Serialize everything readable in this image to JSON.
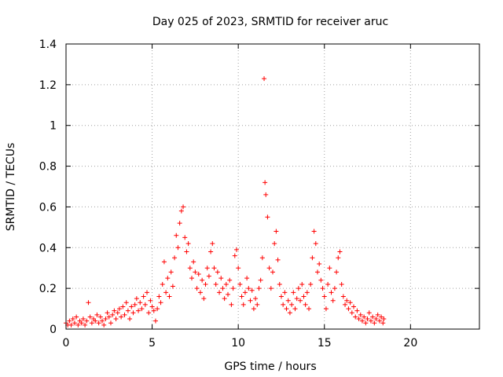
{
  "chart_data": {
    "type": "scatter",
    "title": "Day 025 of 2023, SRMTID for receiver aruc",
    "xlabel": "GPS time / hours",
    "ylabel": "SRMTID / TECUs",
    "xlim": [
      0,
      24
    ],
    "ylim": [
      0,
      1.4
    ],
    "xticks": [
      0,
      5,
      10,
      15,
      20
    ],
    "yticks": [
      0,
      0.2,
      0.4,
      0.6,
      0.8,
      1,
      1.2,
      1.4
    ],
    "xtick_labels": [
      "0",
      "5",
      "10",
      "15",
      "20"
    ],
    "ytick_labels": [
      "0",
      "0.2",
      "0.4",
      "0.6",
      "0.8",
      "1",
      "1.2",
      "1.4"
    ],
    "grid": true,
    "marker": "+",
    "color": "#ff0000",
    "series": [
      {
        "name": "SRMTID",
        "points": [
          [
            0.0,
            0.03
          ],
          [
            0.1,
            0.02
          ],
          [
            0.2,
            0.04
          ],
          [
            0.3,
            0.02
          ],
          [
            0.4,
            0.05
          ],
          [
            0.5,
            0.03
          ],
          [
            0.6,
            0.06
          ],
          [
            0.7,
            0.02
          ],
          [
            0.8,
            0.04
          ],
          [
            0.9,
            0.03
          ],
          [
            1.0,
            0.05
          ],
          [
            1.1,
            0.02
          ],
          [
            1.2,
            0.04
          ],
          [
            1.3,
            0.13
          ],
          [
            1.4,
            0.06
          ],
          [
            1.5,
            0.03
          ],
          [
            1.6,
            0.05
          ],
          [
            1.7,
            0.04
          ],
          [
            1.8,
            0.07
          ],
          [
            1.9,
            0.03
          ],
          [
            2.0,
            0.06
          ],
          [
            2.1,
            0.04
          ],
          [
            2.2,
            0.02
          ],
          [
            2.3,
            0.05
          ],
          [
            2.4,
            0.08
          ],
          [
            2.5,
            0.06
          ],
          [
            2.6,
            0.03
          ],
          [
            2.7,
            0.07
          ],
          [
            2.8,
            0.09
          ],
          [
            2.9,
            0.05
          ],
          [
            3.0,
            0.08
          ],
          [
            3.1,
            0.1
          ],
          [
            3.2,
            0.06
          ],
          [
            3.3,
            0.11
          ],
          [
            3.4,
            0.07
          ],
          [
            3.5,
            0.13
          ],
          [
            3.6,
            0.09
          ],
          [
            3.7,
            0.05
          ],
          [
            3.8,
            0.11
          ],
          [
            3.9,
            0.08
          ],
          [
            4.0,
            0.12
          ],
          [
            4.1,
            0.15
          ],
          [
            4.2,
            0.09
          ],
          [
            4.3,
            0.13
          ],
          [
            4.4,
            0.1
          ],
          [
            4.5,
            0.16
          ],
          [
            4.6,
            0.12
          ],
          [
            4.7,
            0.18
          ],
          [
            4.8,
            0.08
          ],
          [
            4.9,
            0.14
          ],
          [
            5.0,
            0.11
          ],
          [
            5.1,
            0.09
          ],
          [
            5.2,
            0.04
          ],
          [
            5.3,
            0.1
          ],
          [
            5.4,
            0.16
          ],
          [
            5.5,
            0.13
          ],
          [
            5.6,
            0.22
          ],
          [
            5.7,
            0.33
          ],
          [
            5.8,
            0.18
          ],
          [
            5.9,
            0.25
          ],
          [
            6.0,
            0.16
          ],
          [
            6.1,
            0.28
          ],
          [
            6.2,
            0.21
          ],
          [
            6.3,
            0.35
          ],
          [
            6.4,
            0.46
          ],
          [
            6.5,
            0.4
          ],
          [
            6.6,
            0.52
          ],
          [
            6.7,
            0.58
          ],
          [
            6.8,
            0.6
          ],
          [
            6.9,
            0.45
          ],
          [
            7.0,
            0.38
          ],
          [
            7.1,
            0.42
          ],
          [
            7.2,
            0.3
          ],
          [
            7.3,
            0.25
          ],
          [
            7.4,
            0.33
          ],
          [
            7.5,
            0.28
          ],
          [
            7.6,
            0.2
          ],
          [
            7.7,
            0.27
          ],
          [
            7.8,
            0.18
          ],
          [
            7.9,
            0.24
          ],
          [
            8.0,
            0.15
          ],
          [
            8.1,
            0.22
          ],
          [
            8.2,
            0.3
          ],
          [
            8.3,
            0.26
          ],
          [
            8.4,
            0.38
          ],
          [
            8.5,
            0.42
          ],
          [
            8.6,
            0.3
          ],
          [
            8.7,
            0.22
          ],
          [
            8.8,
            0.28
          ],
          [
            8.9,
            0.18
          ],
          [
            9.0,
            0.25
          ],
          [
            9.1,
            0.2
          ],
          [
            9.2,
            0.15
          ],
          [
            9.3,
            0.22
          ],
          [
            9.4,
            0.17
          ],
          [
            9.5,
            0.24
          ],
          [
            9.6,
            0.12
          ],
          [
            9.7,
            0.2
          ],
          [
            9.8,
            0.36
          ],
          [
            9.9,
            0.39
          ],
          [
            10.0,
            0.3
          ],
          [
            10.1,
            0.22
          ],
          [
            10.2,
            0.16
          ],
          [
            10.3,
            0.12
          ],
          [
            10.4,
            0.18
          ],
          [
            10.5,
            0.25
          ],
          [
            10.6,
            0.2
          ],
          [
            10.7,
            0.14
          ],
          [
            10.8,
            0.19
          ],
          [
            10.9,
            0.1
          ],
          [
            11.0,
            0.15
          ],
          [
            11.1,
            0.12
          ],
          [
            11.2,
            0.2
          ],
          [
            11.3,
            0.24
          ],
          [
            11.4,
            0.35
          ],
          [
            11.5,
            1.23
          ],
          [
            11.55,
            0.72
          ],
          [
            11.6,
            0.66
          ],
          [
            11.7,
            0.55
          ],
          [
            11.8,
            0.3
          ],
          [
            11.9,
            0.2
          ],
          [
            12.0,
            0.28
          ],
          [
            12.1,
            0.42
          ],
          [
            12.2,
            0.48
          ],
          [
            12.3,
            0.34
          ],
          [
            12.4,
            0.22
          ],
          [
            12.5,
            0.16
          ],
          [
            12.6,
            0.12
          ],
          [
            12.7,
            0.18
          ],
          [
            12.8,
            0.1
          ],
          [
            12.9,
            0.14
          ],
          [
            13.0,
            0.08
          ],
          [
            13.1,
            0.12
          ],
          [
            13.2,
            0.18
          ],
          [
            13.3,
            0.1
          ],
          [
            13.4,
            0.15
          ],
          [
            13.5,
            0.2
          ],
          [
            13.6,
            0.14
          ],
          [
            13.7,
            0.22
          ],
          [
            13.8,
            0.16
          ],
          [
            13.9,
            0.12
          ],
          [
            14.0,
            0.18
          ],
          [
            14.1,
            0.1
          ],
          [
            14.2,
            0.22
          ],
          [
            14.3,
            0.35
          ],
          [
            14.4,
            0.48
          ],
          [
            14.5,
            0.42
          ],
          [
            14.6,
            0.28
          ],
          [
            14.7,
            0.32
          ],
          [
            14.8,
            0.24
          ],
          [
            14.9,
            0.2
          ],
          [
            15.0,
            0.16
          ],
          [
            15.1,
            0.1
          ],
          [
            15.2,
            0.22
          ],
          [
            15.3,
            0.3
          ],
          [
            15.4,
            0.18
          ],
          [
            15.5,
            0.14
          ],
          [
            15.6,
            0.2
          ],
          [
            15.7,
            0.28
          ],
          [
            15.8,
            0.35
          ],
          [
            15.9,
            0.38
          ],
          [
            16.0,
            0.22
          ],
          [
            16.1,
            0.16
          ],
          [
            16.2,
            0.12
          ],
          [
            16.3,
            0.14
          ],
          [
            16.4,
            0.1
          ],
          [
            16.5,
            0.13
          ],
          [
            16.6,
            0.08
          ],
          [
            16.7,
            0.11
          ],
          [
            16.8,
            0.06
          ],
          [
            16.9,
            0.09
          ],
          [
            17.0,
            0.05
          ],
          [
            17.1,
            0.07
          ],
          [
            17.2,
            0.04
          ],
          [
            17.3,
            0.06
          ],
          [
            17.4,
            0.03
          ],
          [
            17.5,
            0.05
          ],
          [
            17.6,
            0.08
          ],
          [
            17.7,
            0.04
          ],
          [
            17.8,
            0.06
          ],
          [
            17.9,
            0.03
          ],
          [
            18.0,
            0.05
          ],
          [
            18.1,
            0.07
          ],
          [
            18.2,
            0.04
          ],
          [
            18.3,
            0.06
          ],
          [
            18.4,
            0.03
          ],
          [
            18.45,
            0.05
          ]
        ]
      }
    ]
  }
}
